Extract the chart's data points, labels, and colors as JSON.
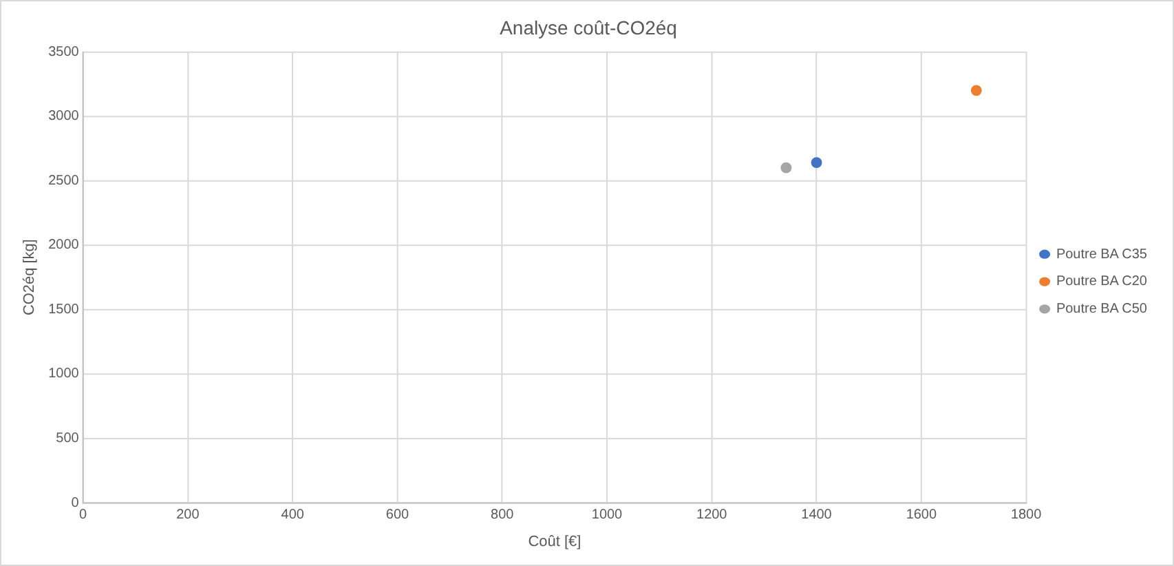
{
  "chart_data": {
    "type": "scatter",
    "title": "Analyse coût-CO2éq",
    "xlabel": "Coût [€]",
    "ylabel": "CO2éq [kg]",
    "series": [
      {
        "name": "Poutre BA C35",
        "color": "#4472c4",
        "x": [
          1400
        ],
        "values": [
          2640
        ]
      },
      {
        "name": "Poutre BA C20",
        "color": "#ed7d31",
        "x": [
          1705
        ],
        "values": [
          3200
        ]
      },
      {
        "name": "Poutre BA C50",
        "color": "#a5a5a5",
        "x": [
          1342
        ],
        "values": [
          2600
        ]
      }
    ],
    "xlim": [
      0,
      1800
    ],
    "xticks": [
      0,
      200,
      400,
      600,
      800,
      1000,
      1200,
      1400,
      1600,
      1800
    ],
    "ylim": [
      0,
      3500
    ],
    "yticks": [
      0,
      500,
      1000,
      1500,
      2000,
      2500,
      3000,
      3500
    ],
    "grid": true,
    "legend": "right",
    "marker": "circle"
  }
}
